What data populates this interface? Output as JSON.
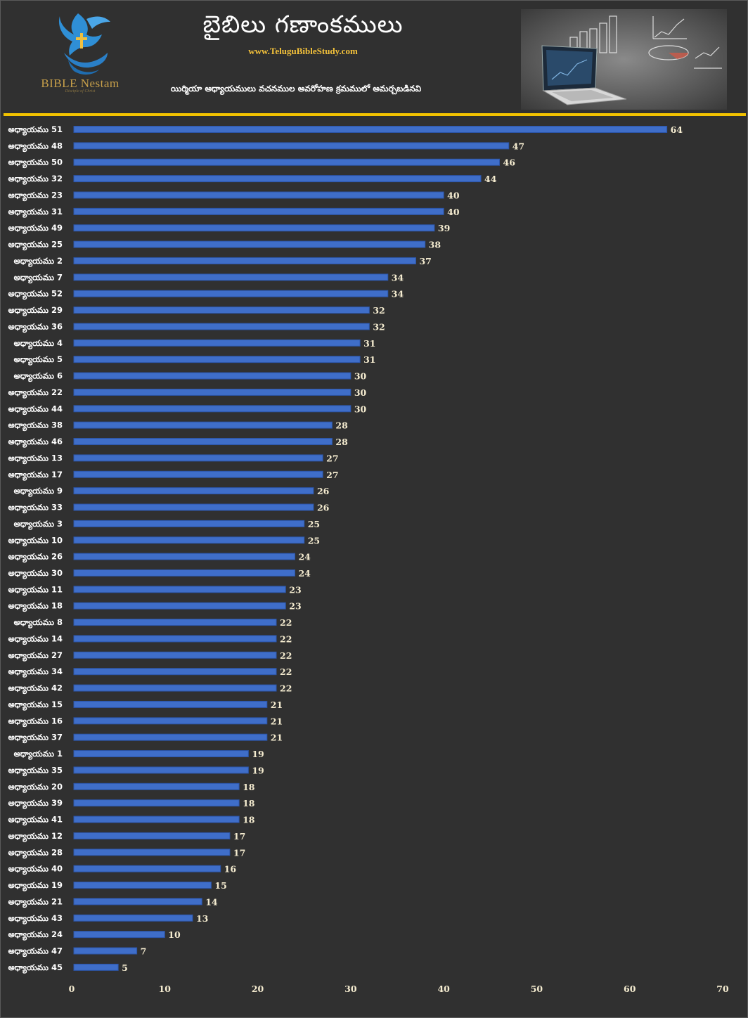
{
  "header": {
    "title": "బైబిలు గణాంకములు",
    "website": "www.TeluguBibleStudy.com",
    "subtitle": "యిర్మియా అధ్యాయములు వచనముల అవరోహణ క్రమములో అమర్చబడినవి",
    "logo_text": "BIBLE Nestam",
    "logo_tagline": "Disciple of Christ",
    "logo_icon": "dove-cross-hands-icon",
    "header_image": "laptop-charts-icon"
  },
  "colors": {
    "background": "#303030",
    "bar": "#3f6ec9",
    "bar_edge": "#2c55a8",
    "label": "#ffffff",
    "value_label": "#f5ecd0",
    "accent": "#f2c200"
  },
  "chart_data": {
    "type": "bar",
    "orientation": "horizontal",
    "categories": [
      "అధ్యాయము 51",
      "అధ్యాయము 48",
      "అధ్యాయము 50",
      "అధ్యాయము 32",
      "అధ్యాయము 23",
      "అధ్యాయము 31",
      "అధ్యాయము 49",
      "అధ్యాయము 25",
      "అధ్యాయము 2",
      "అధ్యాయము 7",
      "అధ్యాయము 52",
      "అధ్యాయము 29",
      "అధ్యాయము 36",
      "అధ్యాయము 4",
      "అధ్యాయము 5",
      "అధ్యాయము 6",
      "అధ్యాయము 22",
      "అధ్యాయము 44",
      "అధ్యాయము 38",
      "అధ్యాయము 46",
      "అధ్యాయము 13",
      "అధ్యాయము 17",
      "అధ్యాయము 9",
      "అధ్యాయము 33",
      "అధ్యాయము 3",
      "అధ్యాయము 10",
      "అధ్యాయము 26",
      "అధ్యాయము 30",
      "అధ్యాయము 11",
      "అధ్యాయము 18",
      "అధ్యాయము 8",
      "అధ్యాయము 14",
      "అధ్యాయము 27",
      "అధ్యాయము 34",
      "అధ్యాయము 42",
      "అధ్యాయము 15",
      "అధ్యాయము 16",
      "అధ్యాయము 37",
      "అధ్యాయము 1",
      "అధ్యాయము 35",
      "అధ్యాయము 20",
      "అధ్యాయము 39",
      "అధ్యాయము 41",
      "అధ్యాయము 12",
      "అధ్యాయము 28",
      "అధ్యాయము 40",
      "అధ్యాయము 19",
      "అధ్యాయము 21",
      "అధ్యాయము 43",
      "అధ్యాయము 24",
      "అధ్యాయము 47",
      "అధ్యాయము 45"
    ],
    "values": [
      64,
      47,
      46,
      44,
      40,
      40,
      39,
      38,
      37,
      34,
      34,
      32,
      32,
      31,
      31,
      30,
      30,
      30,
      28,
      28,
      27,
      27,
      26,
      26,
      25,
      25,
      24,
      24,
      23,
      23,
      22,
      22,
      22,
      22,
      22,
      21,
      21,
      21,
      19,
      19,
      18,
      18,
      18,
      17,
      17,
      16,
      15,
      14,
      13,
      10,
      7,
      5
    ],
    "xlim": [
      0,
      70
    ],
    "xticks": [
      0,
      10,
      20,
      30,
      40,
      50,
      60,
      70
    ],
    "data_labels": true,
    "grid": false,
    "legend": "none"
  }
}
